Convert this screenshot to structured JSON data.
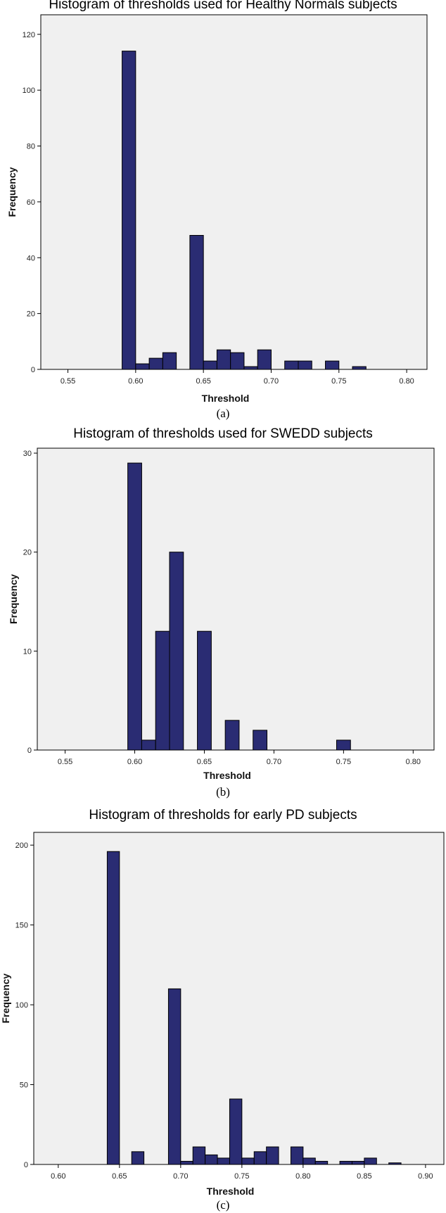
{
  "colors": {
    "bar": "#2a2c73",
    "bar_stroke": "#000000",
    "plot_bg": "#f0f0f0",
    "frame": "#000000"
  },
  "chart_data": [
    {
      "type": "bar",
      "title": "Histogram of thresholds used for Healthy Normals subjects",
      "caption": "(a)",
      "xlabel": "Threshold",
      "ylabel": "Frequency",
      "xlim": [
        0.53,
        0.815
      ],
      "ylim": [
        0,
        127
      ],
      "xticks": [
        "0.55",
        "0.60",
        "0.65",
        "0.70",
        "0.75",
        "0.80"
      ],
      "yticks": [
        "0",
        "20",
        "40",
        "60",
        "80",
        "100",
        "120"
      ],
      "bin_width": 0.01,
      "bins": [
        {
          "x": 0.595,
          "y": 114
        },
        {
          "x": 0.605,
          "y": 2
        },
        {
          "x": 0.615,
          "y": 4
        },
        {
          "x": 0.625,
          "y": 6
        },
        {
          "x": 0.645,
          "y": 48
        },
        {
          "x": 0.655,
          "y": 3
        },
        {
          "x": 0.665,
          "y": 7
        },
        {
          "x": 0.675,
          "y": 6
        },
        {
          "x": 0.685,
          "y": 1
        },
        {
          "x": 0.695,
          "y": 7
        },
        {
          "x": 0.715,
          "y": 3
        },
        {
          "x": 0.725,
          "y": 3
        },
        {
          "x": 0.745,
          "y": 3
        },
        {
          "x": 0.765,
          "y": 1
        }
      ]
    },
    {
      "type": "bar",
      "title": "Histogram of thresholds used for SWEDD subjects",
      "caption": "(b)",
      "xlabel": "Threshold",
      "ylabel": "Frequency",
      "xlim": [
        0.53,
        0.815
      ],
      "ylim": [
        0,
        30.5
      ],
      "xticks": [
        "0.55",
        "0.60",
        "0.65",
        "0.70",
        "0.75",
        "0.80"
      ],
      "yticks": [
        "0",
        "10",
        "20",
        "30"
      ],
      "bin_width": 0.01,
      "bins": [
        {
          "x": 0.6,
          "y": 29
        },
        {
          "x": 0.61,
          "y": 1
        },
        {
          "x": 0.62,
          "y": 12
        },
        {
          "x": 0.63,
          "y": 20
        },
        {
          "x": 0.65,
          "y": 12
        },
        {
          "x": 0.67,
          "y": 3
        },
        {
          "x": 0.69,
          "y": 2
        },
        {
          "x": 0.75,
          "y": 1
        }
      ]
    },
    {
      "type": "bar",
      "title": "Histogram of thresholds for early PD subjects",
      "caption": "(c)",
      "xlabel": "Threshold",
      "ylabel": "Frequency",
      "xlim": [
        0.58,
        0.915
      ],
      "ylim": [
        0,
        208
      ],
      "xticks": [
        "0.60",
        "0.65",
        "0.70",
        "0.75",
        "0.80",
        "0.85",
        "0.90"
      ],
      "yticks": [
        "0",
        "50",
        "100",
        "150",
        "200"
      ],
      "bin_width": 0.01,
      "bins": [
        {
          "x": 0.645,
          "y": 196
        },
        {
          "x": 0.665,
          "y": 8
        },
        {
          "x": 0.695,
          "y": 110
        },
        {
          "x": 0.705,
          "y": 2
        },
        {
          "x": 0.715,
          "y": 11
        },
        {
          "x": 0.725,
          "y": 6
        },
        {
          "x": 0.735,
          "y": 4
        },
        {
          "x": 0.745,
          "y": 41
        },
        {
          "x": 0.755,
          "y": 4
        },
        {
          "x": 0.765,
          "y": 8
        },
        {
          "x": 0.775,
          "y": 11
        },
        {
          "x": 0.795,
          "y": 11
        },
        {
          "x": 0.805,
          "y": 4
        },
        {
          "x": 0.815,
          "y": 2
        },
        {
          "x": 0.835,
          "y": 2
        },
        {
          "x": 0.845,
          "y": 2
        },
        {
          "x": 0.855,
          "y": 4
        },
        {
          "x": 0.875,
          "y": 1
        }
      ]
    }
  ]
}
